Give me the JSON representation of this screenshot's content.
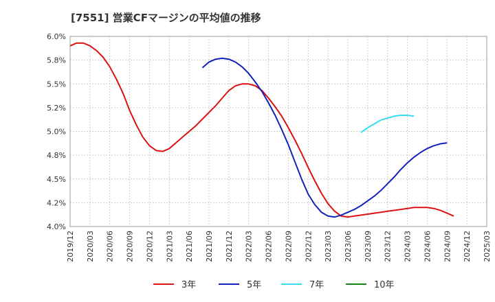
{
  "chart_data": {
    "type": "line",
    "title": "[7551]  営業CFマージンの平均値の推移",
    "xlabel": "",
    "ylabel": "",
    "ylim": [
      4.0,
      6.0
    ],
    "y_ticks": [
      "6.0%",
      "5.8%",
      "5.5%",
      "5.2%",
      "5.0%",
      "4.8%",
      "4.5%",
      "4.2%",
      "4.0%"
    ],
    "x_ticks": [
      "2019/12",
      "2020/03",
      "2020/06",
      "2020/09",
      "2020/12",
      "2021/03",
      "2021/06",
      "2021/09",
      "2021/12",
      "2022/03",
      "2022/06",
      "2022/09",
      "2022/12",
      "2023/03",
      "2023/06",
      "2023/09",
      "2023/12",
      "2024/03",
      "2024/06",
      "2024/09",
      "2024/12",
      "2025/03"
    ],
    "grid": true,
    "legend_position": "bottom",
    "series": [
      {
        "name": "3年",
        "color": "#dd1111",
        "start": "2019/12",
        "values": [
          5.9,
          5.93,
          5.93,
          5.9,
          5.85,
          5.78,
          5.68,
          5.55,
          5.4,
          5.22,
          5.07,
          4.94,
          4.85,
          4.8,
          4.79,
          4.82,
          4.88,
          4.94,
          5.0,
          5.06,
          5.13,
          5.2,
          5.27,
          5.35,
          5.43,
          5.48,
          5.5,
          5.5,
          5.48,
          5.43,
          5.35,
          5.26,
          5.16,
          5.04,
          4.91,
          4.77,
          4.62,
          4.48,
          4.35,
          4.24,
          4.16,
          4.11,
          4.1,
          4.11,
          4.12,
          4.13,
          4.14,
          4.15,
          4.16,
          4.17,
          4.18,
          4.19,
          4.2,
          4.2,
          4.2,
          4.19,
          4.17,
          4.14,
          4.11
        ]
      },
      {
        "name": "5年",
        "color": "#1122bb",
        "start": "2021/08",
        "values": [
          5.67,
          5.73,
          5.76,
          5.77,
          5.76,
          5.73,
          5.68,
          5.61,
          5.52,
          5.42,
          5.3,
          5.17,
          5.02,
          4.86,
          4.68,
          4.5,
          4.34,
          4.23,
          4.15,
          4.11,
          4.1,
          4.12,
          4.15,
          4.18,
          4.22,
          4.27,
          4.32,
          4.38,
          4.45,
          4.52,
          4.6,
          4.67,
          4.73,
          4.78,
          4.82,
          4.85,
          4.87,
          4.88
        ]
      },
      {
        "name": "7年",
        "color": "#33ddee",
        "start": "2023/08",
        "values": [
          4.99,
          5.04,
          5.08,
          5.12,
          5.14,
          5.16,
          5.17,
          5.17,
          5.16
        ]
      },
      {
        "name": "10年",
        "color": "#118811",
        "start": "2023/08",
        "values": []
      }
    ]
  }
}
